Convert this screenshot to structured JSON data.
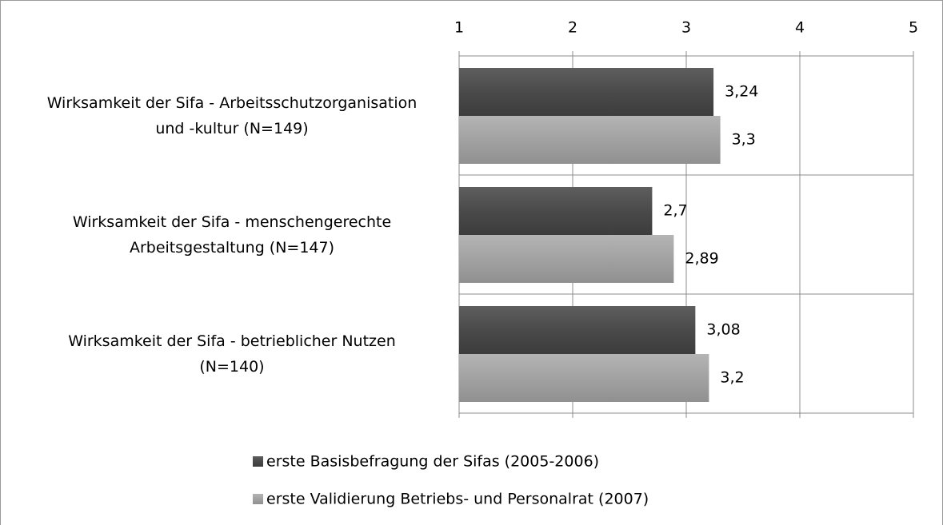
{
  "chart_data": {
    "type": "bar",
    "orientation": "horizontal",
    "categories": [
      "Wirksamkeit der Sifa - Arbeitsschutzorganisation\nund -kultur (N=149)",
      "Wirksamkeit der Sifa - menschengerechte\nArbeitsgestaltung (N=147)",
      "Wirksamkeit der Sifa - betrieblicher Nutzen\n(N=140)"
    ],
    "series": [
      {
        "name": "erste Basisbefragung der Sifas (2005-2006)",
        "color": "#4d4d4d",
        "values": [
          3.24,
          2.7,
          3.08
        ],
        "value_labels": [
          "3,24",
          "2,7",
          "3,08"
        ]
      },
      {
        "name": "erste Validierung Betriebs- und Personalrat (2007)",
        "color": "#a6a6a6",
        "values": [
          3.3,
          2.89,
          3.2
        ],
        "value_labels": [
          "3,3",
          "2,89",
          "3,2"
        ]
      }
    ],
    "xlim": [
      1,
      5
    ],
    "xticks": [
      1,
      2,
      3,
      4,
      5
    ],
    "grid": true,
    "legend": "bottom"
  }
}
